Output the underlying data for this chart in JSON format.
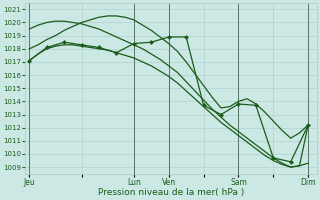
{
  "xlabel": "Pression niveau de la mer( hPa )",
  "bg_color": "#cce8e4",
  "grid_color": "#a8ccc8",
  "line_color": "#1a5c1a",
  "ylim": [
    1008.5,
    1021.5
  ],
  "yticks": [
    1009,
    1010,
    1011,
    1012,
    1013,
    1014,
    1015,
    1016,
    1017,
    1018,
    1019,
    1020,
    1021
  ],
  "day_labels": [
    "Jeu",
    "",
    "Lun",
    "Ven",
    "",
    "Sam",
    "",
    "Dim"
  ],
  "day_positions": [
    0,
    6,
    12,
    16,
    20,
    24,
    28,
    32
  ],
  "vline_positions": [
    0,
    12,
    16,
    24,
    32
  ],
  "xlim": [
    -0.5,
    33
  ],
  "series1_x": [
    0,
    1,
    2,
    3,
    4,
    5,
    6,
    7,
    8,
    9,
    10,
    11,
    12,
    13,
    14,
    15,
    16,
    17,
    18,
    19,
    20,
    21,
    22,
    23,
    24,
    25,
    26,
    27,
    28,
    29,
    30,
    31,
    32
  ],
  "series1_y": [
    1017.1,
    1017.6,
    1018.0,
    1018.2,
    1018.3,
    1018.3,
    1018.2,
    1018.1,
    1018.0,
    1017.9,
    1017.7,
    1017.5,
    1017.3,
    1017.0,
    1016.7,
    1016.3,
    1015.9,
    1015.4,
    1014.8,
    1014.2,
    1013.6,
    1013.0,
    1012.4,
    1011.9,
    1011.4,
    1010.9,
    1010.4,
    1009.9,
    1009.5,
    1009.2,
    1009.0,
    1009.1,
    1009.3
  ],
  "series2_x": [
    0,
    1,
    2,
    3,
    4,
    5,
    6,
    7,
    8,
    9,
    10,
    11,
    12,
    13,
    14,
    15,
    16,
    17,
    18,
    19,
    20,
    21,
    22,
    23,
    24,
    25,
    26,
    27,
    28,
    29,
    30,
    31,
    32
  ],
  "series2_y": [
    1019.5,
    1019.8,
    1020.0,
    1020.1,
    1020.1,
    1020.0,
    1019.9,
    1019.7,
    1019.5,
    1019.2,
    1018.9,
    1018.6,
    1018.3,
    1018.0,
    1017.6,
    1017.2,
    1016.7,
    1016.2,
    1015.5,
    1014.8,
    1014.1,
    1013.4,
    1012.8,
    1012.2,
    1011.7,
    1011.2,
    1010.7,
    1010.2,
    1009.7,
    1009.3,
    1009.0,
    1009.1,
    1012.2
  ],
  "series3_x": [
    0,
    1,
    2,
    3,
    4,
    5,
    6,
    7,
    8,
    9,
    10,
    11,
    12,
    13,
    14,
    15,
    16,
    17,
    18,
    19,
    20,
    21,
    22,
    23,
    24,
    25,
    26,
    27,
    28,
    29,
    30,
    31,
    32
  ],
  "series3_y": [
    1018.0,
    1018.3,
    1018.7,
    1019.0,
    1019.4,
    1019.7,
    1020.0,
    1020.2,
    1020.4,
    1020.5,
    1020.5,
    1020.4,
    1020.2,
    1019.8,
    1019.4,
    1018.9,
    1018.4,
    1017.8,
    1017.0,
    1016.1,
    1015.2,
    1014.3,
    1013.5,
    1013.6,
    1014.0,
    1014.2,
    1013.8,
    1013.2,
    1012.5,
    1011.8,
    1011.2,
    1011.6,
    1012.2
  ],
  "series4_x": [
    0,
    2,
    4,
    6,
    8,
    10,
    12,
    14,
    16,
    18,
    20,
    22,
    24,
    26,
    28,
    30,
    32
  ],
  "series4_y": [
    1017.1,
    1018.1,
    1018.5,
    1018.3,
    1018.1,
    1017.7,
    1018.4,
    1018.5,
    1018.9,
    1018.9,
    1013.7,
    1013.0,
    1013.8,
    1013.7,
    1009.7,
    1009.4,
    1012.2
  ]
}
